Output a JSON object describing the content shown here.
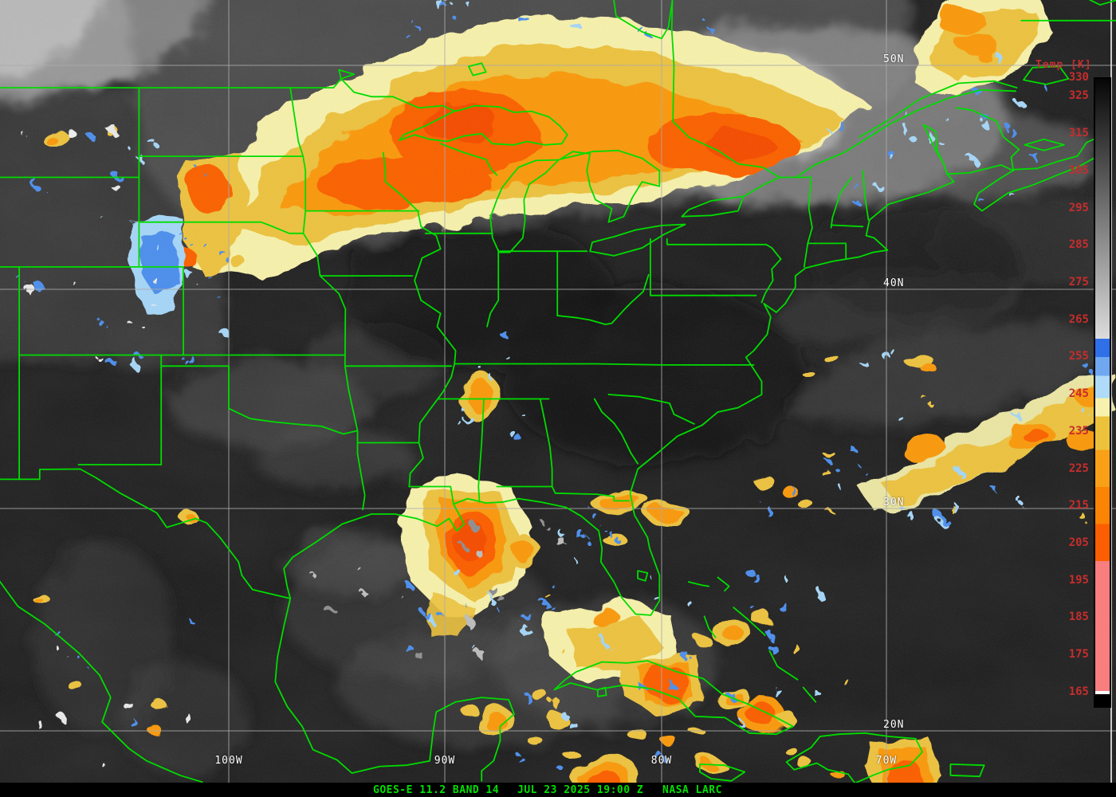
{
  "caption": {
    "product": "GOES-E 11.2 BAND 14",
    "timestamp": "JUL 23 2025 19:00 Z",
    "credit": "NASA LARC",
    "text_color": "#00E000",
    "background_color": "#000000"
  },
  "grid": {
    "line_color": "#ABABAB",
    "edge_line_color": "#E6E6E6",
    "label_color": "#FFFFFF",
    "latitude_labels": [
      "50N",
      "40N",
      "30N",
      "20N"
    ],
    "longitude_labels": [
      "100W",
      "90W",
      "80W",
      "70W"
    ]
  },
  "boundaries": {
    "color": "#00DC00"
  },
  "colorbar": {
    "title": "Temp [K]",
    "text_color": "#C62D2D",
    "unit": "K",
    "min": 165,
    "max": 330,
    "tick_labels": [
      "330",
      "325",
      "315",
      "305",
      "295",
      "285",
      "275",
      "265",
      "255",
      "245",
      "235",
      "225",
      "215",
      "205",
      "195",
      "185",
      "175",
      "165"
    ],
    "segments": [
      {
        "from": 330,
        "to": 260,
        "type": "gradient",
        "colors": [
          "#060606",
          "#DCDCDC"
        ]
      },
      {
        "from": 260,
        "to": 255,
        "type": "solid",
        "color": "#2F6FE8"
      },
      {
        "from": 255,
        "to": 250,
        "type": "solid",
        "color": "#6FA8F0"
      },
      {
        "from": 250,
        "to": 244,
        "type": "solid",
        "color": "#AFDAF8"
      },
      {
        "from": 244,
        "to": 239,
        "type": "solid",
        "color": "#F8F2AE"
      },
      {
        "from": 239,
        "to": 230,
        "type": "solid",
        "color": "#ECC23C"
      },
      {
        "from": 230,
        "to": 220,
        "type": "solid",
        "color": "#F9A018"
      },
      {
        "from": 220,
        "to": 210,
        "type": "solid",
        "color": "#FB8306"
      },
      {
        "from": 210,
        "to": 200,
        "type": "solid",
        "color": "#FC5E03"
      },
      {
        "from": 200,
        "to": 165,
        "type": "solid",
        "color": "#F97E80"
      }
    ],
    "footer": [
      {
        "color": "#FFFFFF"
      },
      {
        "color": "#000000"
      }
    ]
  }
}
